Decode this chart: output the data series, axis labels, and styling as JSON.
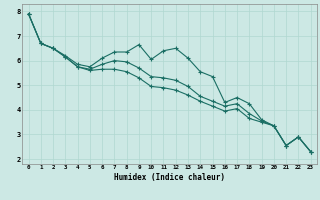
{
  "xlabel": "Humidex (Indice chaleur)",
  "background_color": "#cce8e4",
  "grid_color": "#b0d8d0",
  "line_color": "#1a6e64",
  "xlim": [
    -0.5,
    23.5
  ],
  "ylim": [
    1.8,
    8.3
  ],
  "xticks": [
    0,
    1,
    2,
    3,
    4,
    5,
    6,
    7,
    8,
    9,
    10,
    11,
    12,
    13,
    14,
    15,
    16,
    17,
    18,
    19,
    20,
    21,
    22,
    23
  ],
  "yticks": [
    2,
    3,
    4,
    5,
    6,
    7,
    8
  ],
  "series": {
    "upper": [
      7.9,
      6.7,
      6.5,
      6.2,
      5.85,
      5.75,
      6.1,
      6.35,
      6.35,
      6.65,
      6.05,
      6.4,
      6.5,
      6.1,
      5.55,
      5.35,
      4.3,
      4.5,
      4.25,
      3.6,
      3.35,
      2.55,
      2.9,
      2.3
    ],
    "mid": [
      7.9,
      6.7,
      6.5,
      6.15,
      5.75,
      5.65,
      5.85,
      6.0,
      5.95,
      5.7,
      5.35,
      5.3,
      5.2,
      4.95,
      4.55,
      4.35,
      4.15,
      4.25,
      3.85,
      3.55,
      3.35,
      2.55,
      2.9,
      2.3
    ],
    "lower": [
      7.9,
      6.7,
      6.5,
      6.15,
      5.75,
      5.6,
      5.65,
      5.65,
      5.55,
      5.3,
      4.95,
      4.9,
      4.8,
      4.6,
      4.35,
      4.15,
      3.95,
      4.05,
      3.65,
      3.5,
      3.35,
      2.55,
      2.9,
      2.3
    ]
  }
}
